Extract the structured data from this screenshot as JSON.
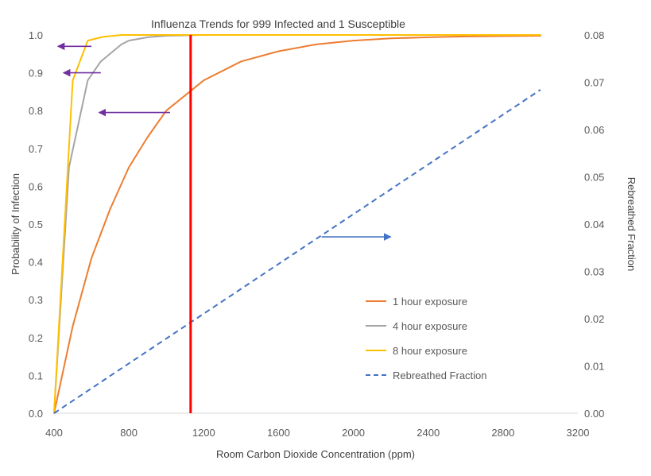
{
  "chart_data": {
    "type": "line",
    "title": "Influenza Trends for 999 Infected and 1 Susceptible",
    "xlabel": "Room Carbon Dioxide Concentration (ppm)",
    "ylabel": "Probability of Infection",
    "y2label": "Rebreathed Fraction",
    "xlim": [
      400,
      3200
    ],
    "ylim": [
      0,
      1.0
    ],
    "y2lim": [
      0,
      0.08
    ],
    "x_ticks": [
      "400",
      "800",
      "1200",
      "1600",
      "2000",
      "2400",
      "2800",
      "3200"
    ],
    "y_ticks": [
      "0.0",
      "0.1",
      "0.2",
      "0.3",
      "0.4",
      "0.5",
      "0.6",
      "0.7",
      "0.8",
      "0.9",
      "1.0"
    ],
    "y2_ticks": [
      "0.00",
      "0.01",
      "0.02",
      "0.03",
      "0.04",
      "0.05",
      "0.06",
      "0.07",
      "0.08"
    ],
    "grid": false,
    "legend_position": "bottom-right",
    "series": [
      {
        "name": "1 hour exposure",
        "color": "#ED7D31",
        "axis": "left",
        "style": "solid",
        "x": [
          400,
          500,
          600,
          700,
          800,
          900,
          1000,
          1100,
          1200,
          1400,
          1600,
          1800,
          2000,
          2200,
          2400,
          2600,
          2800,
          3000
        ],
        "y": [
          0.0,
          0.23,
          0.41,
          0.54,
          0.65,
          0.73,
          0.8,
          0.84,
          0.88,
          0.93,
          0.957,
          0.975,
          0.985,
          0.991,
          0.994,
          0.996,
          0.997,
          0.998
        ]
      },
      {
        "name": "4 hour exposure",
        "color": "#A5A5A5",
        "axis": "left",
        "style": "solid",
        "x": [
          400,
          480,
          580,
          650,
          760,
          800,
          900,
          1000,
          1100,
          1200,
          1400,
          1600,
          2000,
          2400,
          3000
        ],
        "y": [
          0.0,
          0.65,
          0.88,
          0.93,
          0.975,
          0.985,
          0.994,
          0.998,
          0.999,
          1.0,
          1.0,
          1.0,
          1.0,
          1.0,
          1.0
        ]
      },
      {
        "name": "8 hour exposure",
        "color": "#FFC000",
        "axis": "left",
        "style": "solid",
        "x": [
          400,
          500,
          580,
          660,
          760,
          900,
          1000,
          1200,
          1600,
          2000,
          2400,
          3000
        ],
        "y": [
          0.0,
          0.88,
          0.985,
          0.995,
          1.0,
          1.0,
          1.0,
          1.0,
          1.0,
          1.0,
          1.0,
          1.0
        ]
      },
      {
        "name": "Rebreathed Fraction",
        "color": "#4472C4",
        "axis": "right",
        "style": "dashed",
        "x": [
          400,
          3000
        ],
        "y": [
          0.0,
          0.0684
        ]
      }
    ],
    "vertical_line": {
      "x": 1130,
      "color": "#FF0000"
    },
    "arrows": [
      {
        "from": [
          600,
          0.97
        ],
        "to": [
          420,
          0.97
        ],
        "color": "#7030A0",
        "axis": "left"
      },
      {
        "from": [
          650,
          0.9
        ],
        "to": [
          450,
          0.9
        ],
        "color": "#7030A0",
        "axis": "left"
      },
      {
        "from": [
          1020,
          0.795
        ],
        "to": [
          640,
          0.795
        ],
        "color": "#7030A0",
        "axis": "left"
      },
      {
        "from": [
          1830,
          0.0373
        ],
        "to": [
          2200,
          0.0373
        ],
        "color": "#4472C4",
        "axis": "right"
      }
    ]
  }
}
